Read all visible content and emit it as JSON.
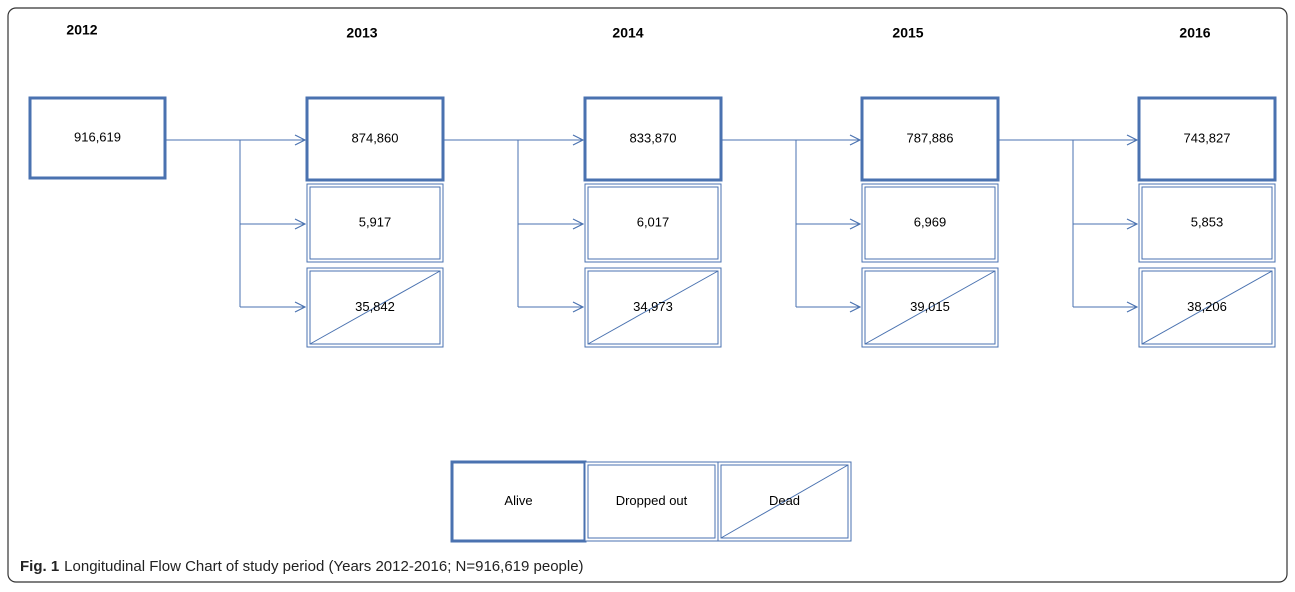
{
  "years": [
    "2012",
    "2013",
    "2014",
    "2015",
    "2016"
  ],
  "start": "916,619",
  "columns": [
    {
      "alive": "874,860",
      "dropped": "5,917",
      "dead": "35,842"
    },
    {
      "alive": "833,870",
      "dropped": "6,017",
      "dead": "34,973"
    },
    {
      "alive": "787,886",
      "dropped": "6,969",
      "dead": "39,015"
    },
    {
      "alive": "743,827",
      "dropped": "5,853",
      "dead": "38,206"
    }
  ],
  "legend": {
    "alive": "Alive",
    "dropped": "Dropped out",
    "dead": "Dead"
  },
  "caption": {
    "label": "Fig. 1",
    "text": "Longitudinal Flow Chart of study period (Years 2012-2016; N=916,619 people)"
  }
}
